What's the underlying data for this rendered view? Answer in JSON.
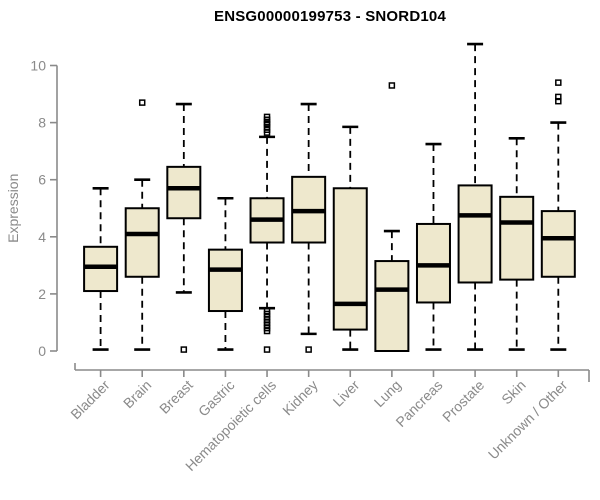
{
  "title": "ENSG00000199753 - SNORD104",
  "chart_data": {
    "type": "boxplot",
    "title": "ENSG00000199753 - SNORD104",
    "xlabel": "",
    "ylabel": "Expression",
    "yticks": [
      0,
      2,
      4,
      6,
      8,
      10
    ],
    "ylim": [
      0,
      10.8
    ],
    "grid": false,
    "legend": "none",
    "box_fill": "#EEE8CD",
    "box_stroke": "#000000",
    "median_color": "#000000",
    "whisker_color": "#000000",
    "axis_color": "#8a8a8a",
    "label_color": "#8a8a8a",
    "title_color": "#000000",
    "categories": [
      "Bladder",
      "Brain",
      "Breast",
      "Gastric",
      "Hematopoietic cells",
      "Kidney",
      "Liver",
      "Lung",
      "Pancreas",
      "Prostate",
      "Skin",
      "Unknown / Other"
    ],
    "series": [
      {
        "category": "Bladder",
        "low": 0.05,
        "q1": 2.1,
        "median": 2.95,
        "q3": 3.65,
        "high": 5.7,
        "outliers": []
      },
      {
        "category": "Brain",
        "low": 0.05,
        "q1": 2.6,
        "median": 4.1,
        "q3": 5.0,
        "high": 6.0,
        "outliers": [
          8.7
        ]
      },
      {
        "category": "Breast",
        "low": 2.05,
        "q1": 4.65,
        "median": 5.7,
        "q3": 6.45,
        "high": 8.65,
        "outliers": [
          0.05
        ]
      },
      {
        "category": "Gastric",
        "low": 0.05,
        "q1": 1.4,
        "median": 2.85,
        "q3": 3.55,
        "high": 5.35,
        "outliers": []
      },
      {
        "category": "Hematopoietic cells",
        "low": 1.5,
        "q1": 3.8,
        "median": 4.6,
        "q3": 5.35,
        "high": 7.5,
        "outliers": [
          8.2,
          8.1,
          8.0,
          7.95,
          7.85,
          7.75,
          7.65,
          1.4,
          1.3,
          1.2,
          1.1,
          1.0,
          0.9,
          0.8,
          0.7,
          0.05
        ]
      },
      {
        "category": "Kidney",
        "low": 0.6,
        "q1": 3.8,
        "median": 4.9,
        "q3": 6.1,
        "high": 8.65,
        "outliers": [
          0.05
        ]
      },
      {
        "category": "Liver",
        "low": 0.05,
        "q1": 0.75,
        "median": 1.65,
        "q3": 5.7,
        "high": 7.85,
        "outliers": []
      },
      {
        "category": "Lung",
        "low": 0.0,
        "q1": 0.0,
        "median": 2.15,
        "q3": 3.15,
        "high": 4.2,
        "outliers": [
          9.3
        ]
      },
      {
        "category": "Pancreas",
        "low": 0.05,
        "q1": 1.7,
        "median": 3.0,
        "q3": 4.45,
        "high": 7.25,
        "outliers": []
      },
      {
        "category": "Prostate",
        "low": 0.05,
        "q1": 2.4,
        "median": 4.75,
        "q3": 5.8,
        "high": 10.75,
        "outliers": []
      },
      {
        "category": "Skin",
        "low": 0.05,
        "q1": 2.5,
        "median": 4.5,
        "q3": 5.4,
        "high": 7.45,
        "outliers": []
      },
      {
        "category": "Unknown / Other",
        "low": 0.05,
        "q1": 2.6,
        "median": 3.95,
        "q3": 4.9,
        "high": 8.0,
        "outliers": [
          9.4,
          8.9,
          8.75
        ]
      }
    ]
  }
}
